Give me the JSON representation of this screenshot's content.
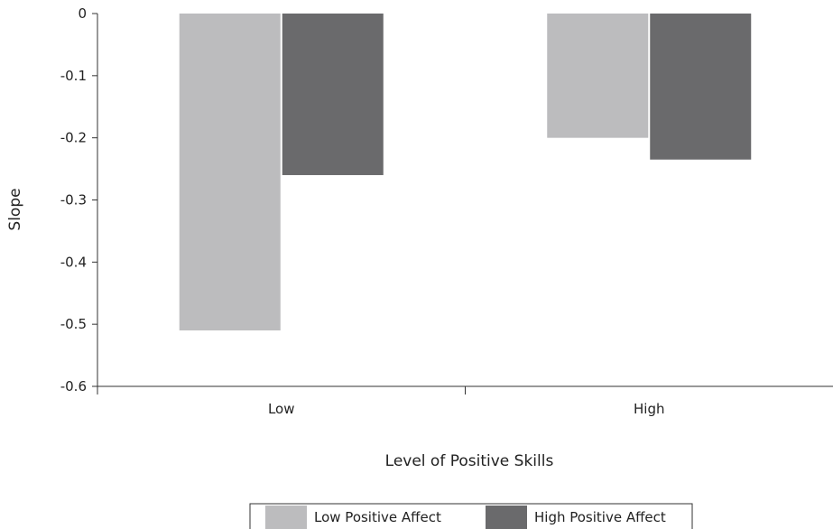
{
  "chart_data": {
    "type": "bar",
    "title": "",
    "xlabel": "Level of Positive Skills",
    "ylabel": "Slope",
    "categories": [
      "Low",
      "High"
    ],
    "series": [
      {
        "name": "Low Positive Affect",
        "values": [
          -0.51,
          -0.2
        ],
        "color": "#bcbcbe"
      },
      {
        "name": "High Positive Affect",
        "values": [
          -0.26,
          -0.235
        ],
        "color": "#6a6a6c"
      }
    ],
    "ylim": [
      -0.6,
      0
    ],
    "yticks": [
      "0",
      "-0.1",
      "-0.2",
      "-0.3",
      "-0.4",
      "-0.5",
      "-0.6"
    ],
    "grid": false,
    "legend_position": "bottom-center"
  }
}
